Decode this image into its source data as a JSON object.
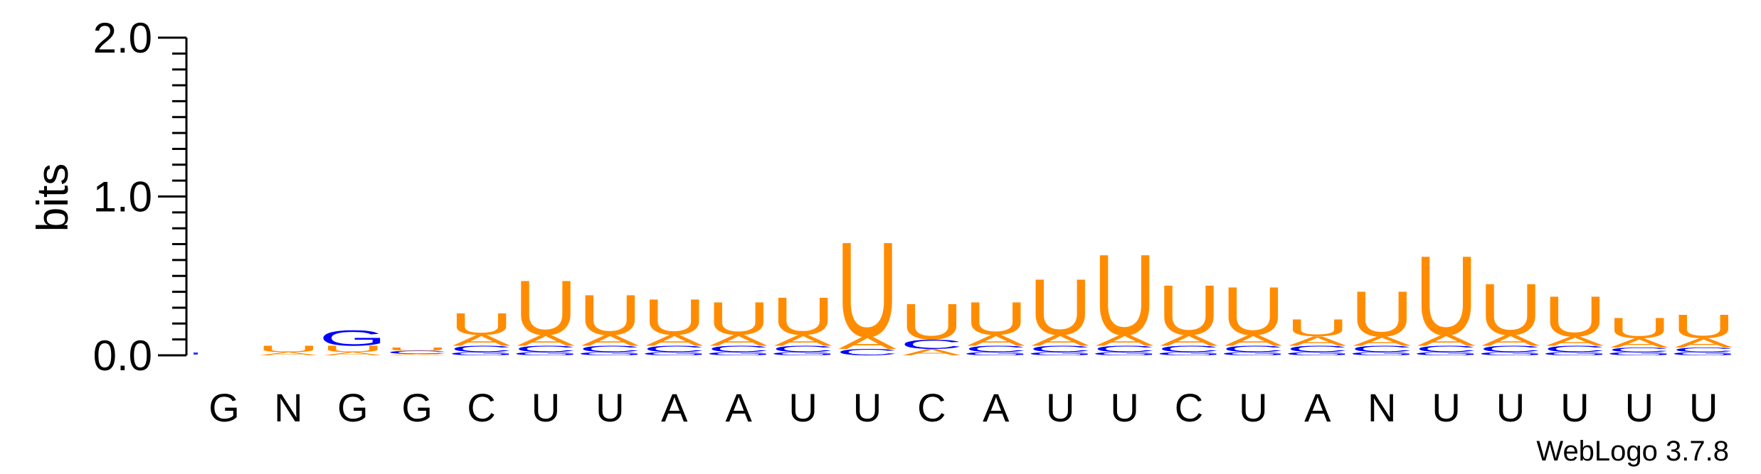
{
  "chart_data": {
    "type": "sequence-logo",
    "ylabel": "bits",
    "ylim": [
      0,
      2
    ],
    "yticks": [
      {
        "value": 0.0,
        "label": "0.0"
      },
      {
        "value": 1.0,
        "label": "1.0"
      },
      {
        "value": 2.0,
        "label": "2.0"
      }
    ],
    "colors": {
      "U": "#ff8c00",
      "A": "#ff8c00",
      "C": "#0000ff",
      "G": "#0000ff"
    },
    "positions": [
      {
        "consensus": "G",
        "stack": [
          {
            "letter": "G",
            "bits": 0.0
          },
          {
            "letter": "A",
            "bits": 0.0
          },
          {
            "letter": "C",
            "bits": 0.0
          },
          {
            "letter": "U",
            "bits": 0.0
          }
        ]
      },
      {
        "consensus": "N",
        "stack": [
          {
            "letter": "A",
            "bits": 0.02
          },
          {
            "letter": "U",
            "bits": 0.04
          }
        ]
      },
      {
        "consensus": "G",
        "stack": [
          {
            "letter": "A",
            "bits": 0.02
          },
          {
            "letter": "U",
            "bits": 0.04
          },
          {
            "letter": "G",
            "bits": 0.1
          }
        ]
      },
      {
        "consensus": "G",
        "stack": [
          {
            "letter": "A",
            "bits": 0.01
          },
          {
            "letter": "C",
            "bits": 0.02
          },
          {
            "letter": "U",
            "bits": 0.02
          }
        ]
      },
      {
        "consensus": "C",
        "stack": [
          {
            "letter": "G",
            "bits": 0.02
          },
          {
            "letter": "C",
            "bits": 0.04
          },
          {
            "letter": "A",
            "bits": 0.07
          },
          {
            "letter": "U",
            "bits": 0.14
          }
        ]
      },
      {
        "consensus": "U",
        "stack": [
          {
            "letter": "G",
            "bits": 0.02
          },
          {
            "letter": "C",
            "bits": 0.04
          },
          {
            "letter": "A",
            "bits": 0.07
          },
          {
            "letter": "U",
            "bits": 0.35
          }
        ]
      },
      {
        "consensus": "U",
        "stack": [
          {
            "letter": "G",
            "bits": 0.02
          },
          {
            "letter": "C",
            "bits": 0.04
          },
          {
            "letter": "A",
            "bits": 0.07
          },
          {
            "letter": "U",
            "bits": 0.26
          }
        ]
      },
      {
        "consensus": "A",
        "stack": [
          {
            "letter": "G",
            "bits": 0.02
          },
          {
            "letter": "C",
            "bits": 0.04
          },
          {
            "letter": "A",
            "bits": 0.07
          },
          {
            "letter": "U",
            "bits": 0.23
          }
        ]
      },
      {
        "consensus": "A",
        "stack": [
          {
            "letter": "G",
            "bits": 0.02
          },
          {
            "letter": "C",
            "bits": 0.04
          },
          {
            "letter": "A",
            "bits": 0.07
          },
          {
            "letter": "U",
            "bits": 0.21
          }
        ]
      },
      {
        "consensus": "U",
        "stack": [
          {
            "letter": "G",
            "bits": 0.02
          },
          {
            "letter": "C",
            "bits": 0.04
          },
          {
            "letter": "A",
            "bits": 0.07
          },
          {
            "letter": "U",
            "bits": 0.24
          }
        ]
      },
      {
        "consensus": "U",
        "stack": [
          {
            "letter": "C",
            "bits": 0.04
          },
          {
            "letter": "A",
            "bits": 0.08
          },
          {
            "letter": "U",
            "bits": 0.61
          }
        ]
      },
      {
        "consensus": "C",
        "stack": [
          {
            "letter": "A",
            "bits": 0.04
          },
          {
            "letter": "C",
            "bits": 0.06
          },
          {
            "letter": "U",
            "bits": 0.23
          }
        ]
      },
      {
        "consensus": "A",
        "stack": [
          {
            "letter": "G",
            "bits": 0.02
          },
          {
            "letter": "C",
            "bits": 0.04
          },
          {
            "letter": "A",
            "bits": 0.07
          },
          {
            "letter": "U",
            "bits": 0.21
          }
        ]
      },
      {
        "consensus": "U",
        "stack": [
          {
            "letter": "G",
            "bits": 0.02
          },
          {
            "letter": "C",
            "bits": 0.04
          },
          {
            "letter": "A",
            "bits": 0.07
          },
          {
            "letter": "U",
            "bits": 0.36
          }
        ]
      },
      {
        "consensus": "U",
        "stack": [
          {
            "letter": "G",
            "bits": 0.02
          },
          {
            "letter": "C",
            "bits": 0.04
          },
          {
            "letter": "A",
            "bits": 0.07
          },
          {
            "letter": "U",
            "bits": 0.52
          }
        ]
      },
      {
        "consensus": "C",
        "stack": [
          {
            "letter": "G",
            "bits": 0.02
          },
          {
            "letter": "C",
            "bits": 0.04
          },
          {
            "letter": "A",
            "bits": 0.07
          },
          {
            "letter": "U",
            "bits": 0.32
          }
        ]
      },
      {
        "consensus": "U",
        "stack": [
          {
            "letter": "G",
            "bits": 0.02
          },
          {
            "letter": "C",
            "bits": 0.04
          },
          {
            "letter": "A",
            "bits": 0.07
          },
          {
            "letter": "U",
            "bits": 0.31
          }
        ]
      },
      {
        "consensus": "A",
        "stack": [
          {
            "letter": "G",
            "bits": 0.02
          },
          {
            "letter": "C",
            "bits": 0.04
          },
          {
            "letter": "A",
            "bits": 0.06
          },
          {
            "letter": "U",
            "bits": 0.11
          }
        ]
      },
      {
        "consensus": "N",
        "stack": [
          {
            "letter": "G",
            "bits": 0.02
          },
          {
            "letter": "C",
            "bits": 0.04
          },
          {
            "letter": "A",
            "bits": 0.06
          },
          {
            "letter": "U",
            "bits": 0.29
          }
        ]
      },
      {
        "consensus": "U",
        "stack": [
          {
            "letter": "G",
            "bits": 0.02
          },
          {
            "letter": "C",
            "bits": 0.04
          },
          {
            "letter": "A",
            "bits": 0.07
          },
          {
            "letter": "U",
            "bits": 0.51
          }
        ]
      },
      {
        "consensus": "U",
        "stack": [
          {
            "letter": "G",
            "bits": 0.02
          },
          {
            "letter": "C",
            "bits": 0.04
          },
          {
            "letter": "A",
            "bits": 0.07
          },
          {
            "letter": "U",
            "bits": 0.33
          }
        ]
      },
      {
        "consensus": "U",
        "stack": [
          {
            "letter": "G",
            "bits": 0.02
          },
          {
            "letter": "C",
            "bits": 0.04
          },
          {
            "letter": "A",
            "bits": 0.06
          },
          {
            "letter": "U",
            "bits": 0.26
          }
        ]
      },
      {
        "consensus": "U",
        "stack": [
          {
            "letter": "G",
            "bits": 0.02
          },
          {
            "letter": "C",
            "bits": 0.03
          },
          {
            "letter": "A",
            "bits": 0.06
          },
          {
            "letter": "U",
            "bits": 0.13
          }
        ]
      },
      {
        "consensus": "U",
        "stack": [
          {
            "letter": "G",
            "bits": 0.02
          },
          {
            "letter": "C",
            "bits": 0.03
          },
          {
            "letter": "A",
            "bits": 0.06
          },
          {
            "letter": "U",
            "bits": 0.15
          }
        ]
      }
    ]
  },
  "credit": "WebLogo 3.7.8"
}
